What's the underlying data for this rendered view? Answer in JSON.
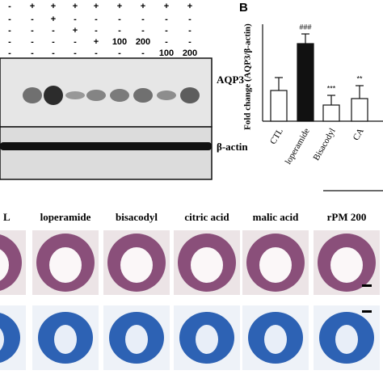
{
  "blot": {
    "treatment_rows": [
      [
        "-",
        "+",
        "+",
        "+",
        "+",
        "+",
        "+",
        "+",
        "+"
      ],
      [
        "-",
        "-",
        "+",
        "-",
        "-",
        "-",
        "-",
        "-",
        "-"
      ],
      [
        "-",
        "-",
        "-",
        "+",
        "-",
        "-",
        "-",
        "-",
        "-"
      ],
      [
        "-",
        "-",
        "-",
        "-",
        "+",
        "100",
        "200",
        "-",
        "-"
      ],
      [
        "-",
        "-",
        "-",
        "-",
        "-",
        "-",
        "-",
        "100",
        "200"
      ]
    ],
    "bands": [
      "AQP3",
      "β-actin"
    ]
  },
  "chart_data": {
    "type": "bar",
    "panel_label": "B",
    "y_label": "Fold change (AQP3/β-actin)",
    "categories": [
      "CTL",
      "loperamide",
      "Bisacodyl",
      "CA"
    ],
    "series": [
      {
        "colors": [
          "#ffffff",
          "#111111",
          "#ffffff",
          "#ffffff"
        ],
        "values": [
          0.95,
          2.4,
          0.5,
          0.7
        ],
        "errors": [
          0.4,
          0.3,
          0.3,
          0.4
        ]
      }
    ],
    "annotations": [
      null,
      "###",
      "***",
      "**"
    ],
    "ylim": [
      0,
      3
    ]
  },
  "histology": {
    "labels": [
      "L",
      "loperamide",
      "bisacodyl",
      "citric acid",
      "malic acid",
      "rPM 200"
    ]
  }
}
